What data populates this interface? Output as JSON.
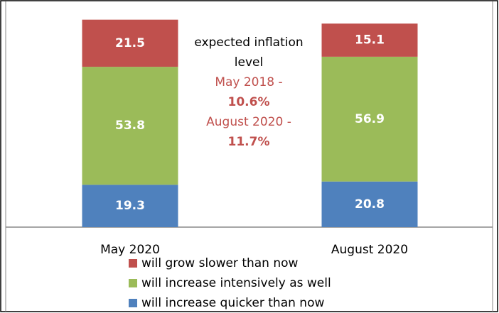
{
  "chart_data": {
    "type": "stacked_bar",
    "categories": [
      "May 2020",
      "August 2020"
    ],
    "series": [
      {
        "name": "will increase quicker than now",
        "color": "#4f81bd",
        "values": [
          19.3,
          20.8
        ]
      },
      {
        "name": "will increase intensively as well",
        "color": "#9bbb59",
        "values": [
          53.8,
          56.9
        ]
      },
      {
        "name": "will grow slower than now",
        "color": "#c0504d",
        "values": [
          21.5,
          15.1
        ]
      }
    ],
    "ylim": [
      0,
      100
    ],
    "annotations": [
      "expected inflation level",
      "May 2018 -",
      "10.6%",
      "August 2020 -",
      "11.7%"
    ]
  }
}
